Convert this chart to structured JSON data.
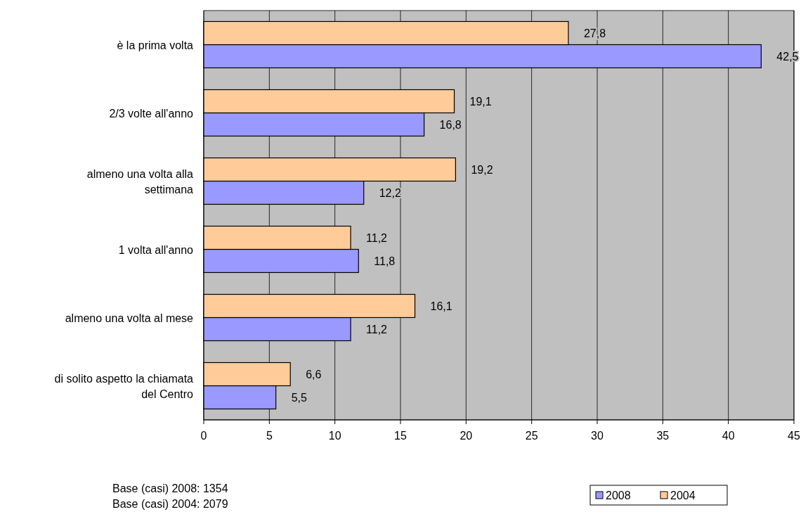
{
  "chart_data": {
    "type": "bar",
    "orientation": "horizontal",
    "categories": [
      "è la prima volta",
      "2/3 volte all'anno",
      "almeno una volta alla settimana",
      "1 volta all'anno",
      "almeno una volta al mese",
      "di solito aspetto la chiamata del Centro"
    ],
    "series": [
      {
        "name": "2008",
        "color": "#9999ff",
        "values": [
          42.5,
          16.8,
          12.2,
          11.8,
          11.2,
          5.5
        ],
        "value_labels": [
          "42,5",
          "16,8",
          "12,2",
          "11,8",
          "11,2",
          "5,5"
        ]
      },
      {
        "name": "2004",
        "color": "#ffcc99",
        "values": [
          27.8,
          19.1,
          19.2,
          11.2,
          16.1,
          6.6
        ],
        "value_labels": [
          "27,8",
          "19,1",
          "19,2",
          "11,2",
          "16,1",
          "6,6"
        ]
      }
    ],
    "xlim": [
      0,
      45
    ],
    "xticks": [
      0,
      5,
      10,
      15,
      20,
      25,
      30,
      35,
      40,
      45
    ],
    "grid": "x",
    "legend": "bottom right",
    "annotations": [
      "Base (casi) 2008: 1354",
      "Base (casi) 2004: 2079"
    ]
  }
}
